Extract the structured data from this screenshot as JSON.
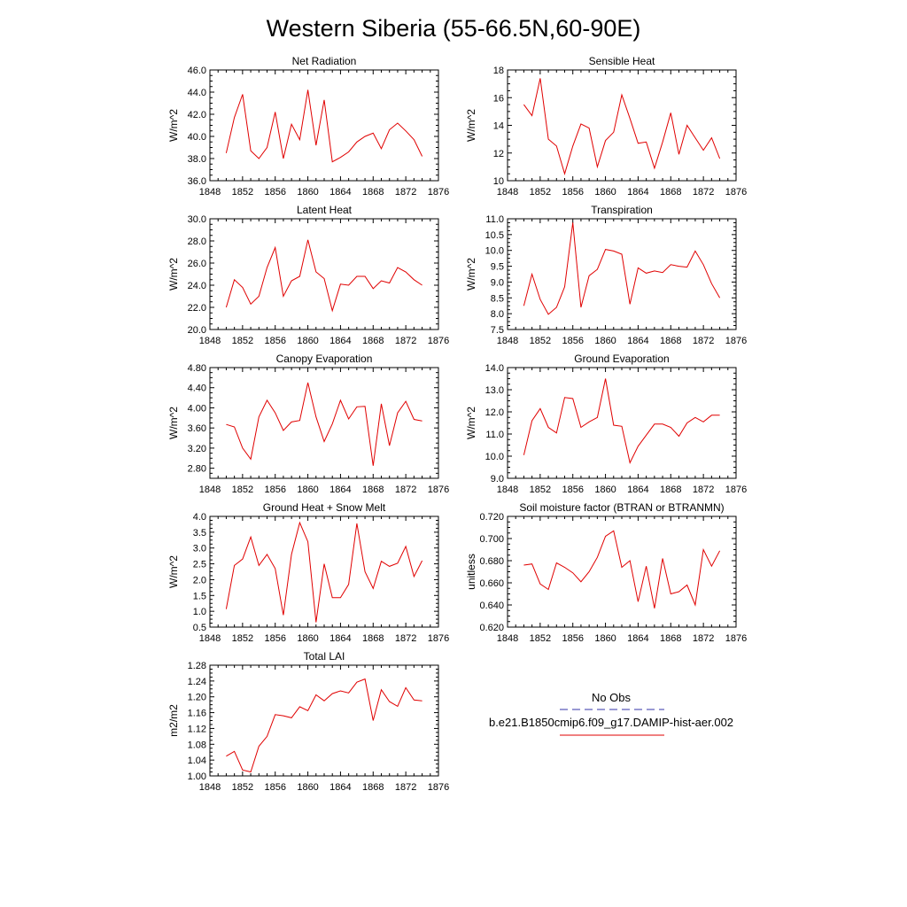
{
  "figure": {
    "title": "Western Siberia (55-66.5N,60-90E)",
    "line_color": "#e00000",
    "legend": {
      "obs_label": "No Obs",
      "obs_color": "#3333aa",
      "case_label": "b.e21.B1850cmip6.f09_g17.DAMIP-hist-aer.002",
      "case_color": "#e00000"
    }
  },
  "chart_data": [
    {
      "type": "line",
      "title": "Net Radiation",
      "ylabel": "W/m^2",
      "xlim": [
        1848,
        1876
      ],
      "ylim": [
        36.0,
        46.0
      ],
      "xticks": [
        "1848",
        "1852",
        "1856",
        "1860",
        "1864",
        "1868",
        "1872",
        "1876"
      ],
      "yticks": [
        "36.0",
        "38.0",
        "40.0",
        "42.0",
        "44.0",
        "46.0"
      ],
      "x": [
        1850,
        1851,
        1852,
        1853,
        1854,
        1855,
        1856,
        1857,
        1858,
        1859,
        1860,
        1861,
        1862,
        1863,
        1864,
        1865,
        1866,
        1867,
        1868,
        1869,
        1870,
        1871,
        1872,
        1873,
        1874
      ],
      "values": [
        38.5,
        41.7,
        43.8,
        38.7,
        38.0,
        39.0,
        42.2,
        38.0,
        41.1,
        39.7,
        44.2,
        39.2,
        43.3,
        37.7,
        38.1,
        38.6,
        39.5,
        40.0,
        40.3,
        38.9,
        40.6,
        41.2,
        40.5,
        39.7,
        38.2
      ]
    },
    {
      "type": "line",
      "title": "Sensible Heat",
      "ylabel": "W/m^2",
      "xlim": [
        1848,
        1876
      ],
      "ylim": [
        10,
        18
      ],
      "xticks": [
        "1848",
        "1852",
        "1856",
        "1860",
        "1864",
        "1868",
        "1872",
        "1876"
      ],
      "yticks": [
        "10",
        "12",
        "14",
        "16",
        "18"
      ],
      "x": [
        1850,
        1851,
        1852,
        1853,
        1854,
        1855,
        1856,
        1857,
        1858,
        1859,
        1860,
        1861,
        1862,
        1863,
        1864,
        1865,
        1866,
        1867,
        1868,
        1869,
        1870,
        1871,
        1872,
        1873,
        1874
      ],
      "values": [
        15.5,
        14.7,
        17.4,
        13.0,
        12.5,
        10.5,
        12.5,
        14.1,
        13.8,
        11.0,
        12.9,
        13.5,
        16.2,
        14.5,
        12.7,
        12.8,
        10.9,
        12.8,
        14.9,
        11.9,
        14.0,
        13.1,
        12.2,
        13.1,
        11.6
      ]
    },
    {
      "type": "line",
      "title": "Latent Heat",
      "ylabel": "W/m^2",
      "xlim": [
        1848,
        1876
      ],
      "ylim": [
        20.0,
        30.0
      ],
      "xticks": [
        "1848",
        "1852",
        "1856",
        "1860",
        "1864",
        "1868",
        "1872",
        "1876"
      ],
      "yticks": [
        "20.0",
        "22.0",
        "24.0",
        "26.0",
        "28.0",
        "30.0"
      ],
      "x": [
        1850,
        1851,
        1852,
        1853,
        1854,
        1855,
        1856,
        1857,
        1858,
        1859,
        1860,
        1861,
        1862,
        1863,
        1864,
        1865,
        1866,
        1867,
        1868,
        1869,
        1870,
        1871,
        1872,
        1873,
        1874
      ],
      "values": [
        22.0,
        24.5,
        23.8,
        22.3,
        23.0,
        25.6,
        27.4,
        23.0,
        24.4,
        24.8,
        28.1,
        25.2,
        24.6,
        21.7,
        24.1,
        24.0,
        24.8,
        24.8,
        23.7,
        24.4,
        24.2,
        25.6,
        25.2,
        24.5,
        24.0
      ]
    },
    {
      "type": "line",
      "title": "Transpiration",
      "ylabel": "W/m^2",
      "xlim": [
        1848,
        1876
      ],
      "ylim": [
        7.5,
        11.0
      ],
      "xticks": [
        "1848",
        "1852",
        "1856",
        "1860",
        "1864",
        "1868",
        "1872",
        "1876"
      ],
      "yticks": [
        "7.5",
        "8.0",
        "8.5",
        "9.0",
        "9.5",
        "10.0",
        "10.5",
        "11.0"
      ],
      "x": [
        1850,
        1851,
        1852,
        1853,
        1854,
        1855,
        1856,
        1857,
        1858,
        1859,
        1860,
        1861,
        1862,
        1863,
        1864,
        1865,
        1866,
        1867,
        1868,
        1869,
        1870,
        1871,
        1872,
        1873,
        1874
      ],
      "values": [
        8.25,
        9.25,
        8.45,
        7.98,
        8.2,
        8.85,
        10.88,
        8.2,
        9.2,
        9.4,
        10.03,
        9.98,
        9.88,
        8.3,
        9.45,
        9.28,
        9.35,
        9.3,
        9.55,
        9.5,
        9.47,
        9.98,
        9.55,
        8.95,
        8.5
      ]
    },
    {
      "type": "line",
      "title": "Canopy Evaporation",
      "ylabel": "W/m^2",
      "xlim": [
        1848,
        1876
      ],
      "ylim": [
        2.6,
        4.8
      ],
      "xticks": [
        "1848",
        "1852",
        "1856",
        "1860",
        "1864",
        "1868",
        "1872",
        "1876"
      ],
      "yticks": [
        "2.80",
        "3.20",
        "3.60",
        "4.00",
        "4.40",
        "4.80"
      ],
      "x": [
        1850,
        1851,
        1852,
        1853,
        1854,
        1855,
        1856,
        1857,
        1858,
        1859,
        1860,
        1861,
        1862,
        1863,
        1864,
        1865,
        1866,
        1867,
        1868,
        1869,
        1870,
        1871,
        1872,
        1873,
        1874
      ],
      "values": [
        3.67,
        3.62,
        3.2,
        2.98,
        3.82,
        4.15,
        3.9,
        3.55,
        3.72,
        3.75,
        4.5,
        3.82,
        3.33,
        3.68,
        4.15,
        3.78,
        4.02,
        4.03,
        2.85,
        4.08,
        3.25,
        3.9,
        4.13,
        3.77,
        3.74
      ]
    },
    {
      "type": "line",
      "title": "Ground Evaporation",
      "ylabel": "W/m^2",
      "xlim": [
        1848,
        1876
      ],
      "ylim": [
        9.0,
        14.0
      ],
      "xticks": [
        "1848",
        "1852",
        "1856",
        "1860",
        "1864",
        "1868",
        "1872",
        "1876"
      ],
      "yticks": [
        "9.0",
        "10.0",
        "11.0",
        "12.0",
        "13.0",
        "14.0"
      ],
      "x": [
        1850,
        1851,
        1852,
        1853,
        1854,
        1855,
        1856,
        1857,
        1858,
        1859,
        1860,
        1861,
        1862,
        1863,
        1864,
        1865,
        1866,
        1867,
        1868,
        1869,
        1870,
        1871,
        1872,
        1873,
        1874
      ],
      "values": [
        10.05,
        11.6,
        12.15,
        11.3,
        11.05,
        12.65,
        12.6,
        11.3,
        11.55,
        11.75,
        13.5,
        11.4,
        11.35,
        9.7,
        10.45,
        10.95,
        11.45,
        11.45,
        11.3,
        10.9,
        11.5,
        11.75,
        11.55,
        11.85,
        11.85
      ]
    },
    {
      "type": "line",
      "title": "Ground Heat + Snow Melt",
      "ylabel": "W/m^2",
      "xlim": [
        1848,
        1876
      ],
      "ylim": [
        0.5,
        4.0
      ],
      "xticks": [
        "1848",
        "1852",
        "1856",
        "1860",
        "1864",
        "1868",
        "1872",
        "1876"
      ],
      "yticks": [
        "0.5",
        "1.0",
        "1.5",
        "2.0",
        "2.5",
        "3.0",
        "3.5",
        "4.0"
      ],
      "x": [
        1850,
        1851,
        1852,
        1853,
        1854,
        1855,
        1856,
        1857,
        1858,
        1859,
        1860,
        1861,
        1862,
        1863,
        1864,
        1865,
        1866,
        1867,
        1868,
        1869,
        1870,
        1871,
        1872,
        1873,
        1874
      ],
      "values": [
        1.07,
        2.45,
        2.65,
        3.35,
        2.45,
        2.8,
        2.35,
        0.88,
        2.8,
        3.8,
        3.2,
        0.65,
        2.5,
        1.43,
        1.43,
        1.85,
        3.78,
        2.25,
        1.72,
        2.58,
        2.42,
        2.52,
        3.05,
        2.1,
        2.6
      ]
    },
    {
      "type": "line",
      "title": "Soil moisture factor (BTRAN or BTRANMN)",
      "ylabel": "unitless",
      "xlim": [
        1848,
        1876
      ],
      "ylim": [
        0.62,
        0.72
      ],
      "xticks": [
        "1848",
        "1852",
        "1856",
        "1860",
        "1864",
        "1868",
        "1872",
        "1876"
      ],
      "yticks": [
        "0.620",
        "0.640",
        "0.660",
        "0.680",
        "0.700",
        "0.720"
      ],
      "x": [
        1850,
        1851,
        1852,
        1853,
        1854,
        1855,
        1856,
        1857,
        1858,
        1859,
        1860,
        1861,
        1862,
        1863,
        1864,
        1865,
        1866,
        1867,
        1868,
        1869,
        1870,
        1871,
        1872,
        1873,
        1874
      ],
      "values": [
        0.676,
        0.677,
        0.659,
        0.654,
        0.678,
        0.674,
        0.669,
        0.661,
        0.67,
        0.683,
        0.702,
        0.707,
        0.674,
        0.68,
        0.643,
        0.675,
        0.637,
        0.682,
        0.65,
        0.652,
        0.658,
        0.64,
        0.69,
        0.675,
        0.689
      ]
    },
    {
      "type": "line",
      "title": "Total LAI",
      "ylabel": "m2/m2",
      "xlim": [
        1848,
        1876
      ],
      "ylim": [
        1.0,
        1.28
      ],
      "xticks": [
        "1848",
        "1852",
        "1856",
        "1860",
        "1864",
        "1868",
        "1872",
        "1876"
      ],
      "yticks": [
        "1.00",
        "1.04",
        "1.08",
        "1.12",
        "1.16",
        "1.20",
        "1.24",
        "1.28"
      ],
      "x": [
        1850,
        1851,
        1852,
        1853,
        1854,
        1855,
        1856,
        1857,
        1858,
        1859,
        1860,
        1861,
        1862,
        1863,
        1864,
        1865,
        1866,
        1867,
        1868,
        1869,
        1870,
        1871,
        1872,
        1873,
        1874
      ],
      "values": [
        1.05,
        1.062,
        1.015,
        1.01,
        1.075,
        1.1,
        1.155,
        1.152,
        1.147,
        1.175,
        1.165,
        1.205,
        1.19,
        1.208,
        1.215,
        1.21,
        1.237,
        1.245,
        1.14,
        1.218,
        1.188,
        1.176,
        1.223,
        1.192,
        1.19
      ]
    }
  ]
}
